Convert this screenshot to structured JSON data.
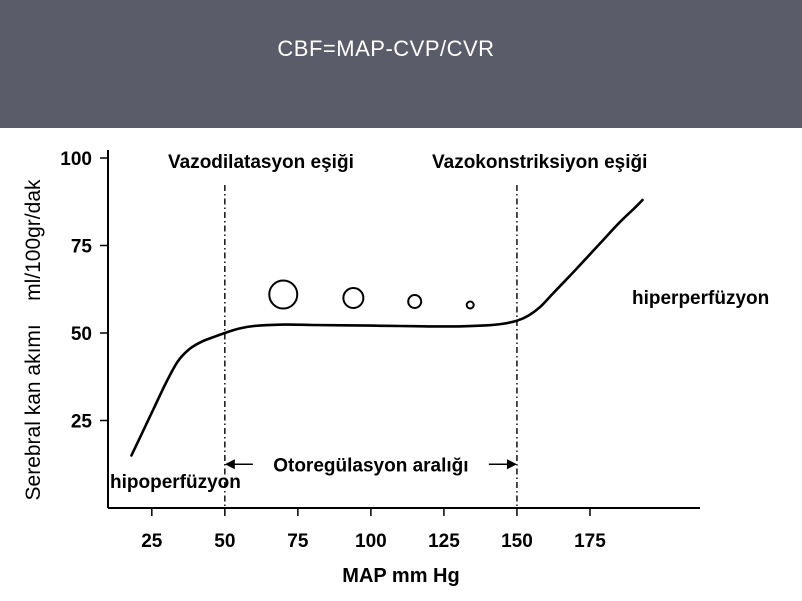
{
  "slide": {
    "title": "CBF=MAP-CVP/CVR"
  },
  "chart_data": {
    "type": "line",
    "title": "",
    "xlabel": "MAP mm Hg",
    "ylabel": "Serebral kan akımı    ml/100gr/dak",
    "xlim": [
      10,
      195
    ],
    "ylim": [
      0,
      100
    ],
    "xticks": [
      25,
      50,
      75,
      100,
      125,
      150,
      175
    ],
    "yticks": [
      25,
      50,
      75,
      100
    ],
    "series": [
      {
        "x": [
          18,
          22,
          26,
          30,
          34,
          38,
          42,
          46,
          50,
          55,
          60,
          70,
          80,
          90,
          100,
          110,
          120,
          130,
          140,
          145,
          150,
          154,
          158,
          162,
          166,
          170,
          175,
          180,
          185,
          190,
          193
        ],
        "y": [
          15,
          22,
          29,
          36,
          42,
          45.5,
          47.5,
          48.8,
          50,
          51.3,
          52,
          52.4,
          52.3,
          52.2,
          52.1,
          52,
          51.9,
          51.9,
          52.2,
          52.6,
          53.5,
          55,
          57.5,
          61,
          64.5,
          68,
          72.5,
          77,
          81.5,
          85.5,
          88
        ]
      }
    ],
    "vlines": [
      {
        "x": 50,
        "label": "Vazodilatasyon eşiği"
      },
      {
        "x": 150,
        "label": "Vazokonstriksiyon eşiği"
      }
    ],
    "range_annotation": {
      "from": 50,
      "to": 150,
      "label": "Otoregülasyon aralığı"
    },
    "vessel_circles": [
      {
        "x": 70,
        "y": 61,
        "size": 4
      },
      {
        "x": 94,
        "y": 60,
        "size": 3
      },
      {
        "x": 115,
        "y": 59,
        "size": 2
      },
      {
        "x": 134,
        "y": 58,
        "size": 1
      }
    ],
    "annotations": {
      "low": "hipoperfüzyon",
      "high": "hiperperfüzyon"
    }
  }
}
